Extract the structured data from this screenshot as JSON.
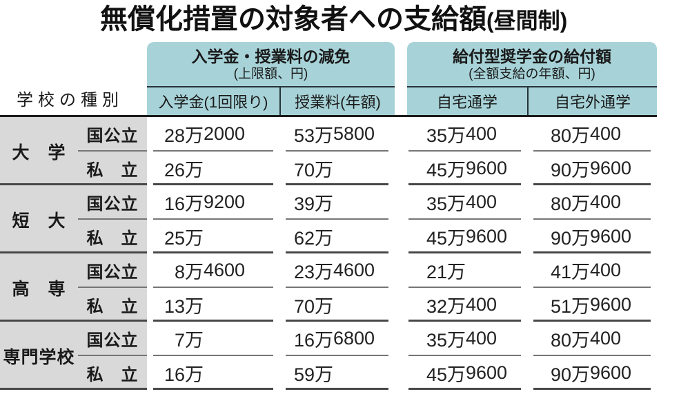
{
  "title": {
    "main": "無償化措置の対象者への支給額",
    "paren": "(昼間制)"
  },
  "colors": {
    "teal": "#a7d3d8",
    "label_gray": "#d9d9d9",
    "header_line": "#263338",
    "strong_line": "#1b1b1b",
    "inner_divider": "#757575",
    "group_divider": "#474747"
  },
  "chart_data": {
    "type": "table",
    "title": "無償化措置の対象者への支給額(昼間制)",
    "school_type_header": "学校の種別",
    "column_groups": [
      {
        "title": "入学金・授業料の減免",
        "subtitle": "(上限額、円)",
        "columns": [
          "入学金(1回限り)",
          "授業料(年額)"
        ]
      },
      {
        "title": "給付型奨学金の給付額",
        "subtitle": "(全額支給の年額、円)",
        "columns": [
          "自宅通学",
          "自宅外通学"
        ]
      }
    ],
    "groups": [
      {
        "label": "大　学",
        "rows": [
          {
            "type": "国公立",
            "values": [
              "28万2000",
              "53万5800",
              "35万400",
              "80万400"
            ]
          },
          {
            "type": "私　立",
            "values": [
              "26万",
              "70万",
              "45万9600",
              "90万9600"
            ]
          }
        ]
      },
      {
        "label": "短　大",
        "rows": [
          {
            "type": "国公立",
            "values": [
              "16万9200",
              "39万",
              "35万400",
              "80万400"
            ]
          },
          {
            "type": "私　立",
            "values": [
              "25万",
              "62万",
              "45万9600",
              "90万9600"
            ]
          }
        ]
      },
      {
        "label": "高　専",
        "rows": [
          {
            "type": "国公立",
            "values": [
              "8万4600",
              "23万4600",
              "21万",
              "41万400"
            ]
          },
          {
            "type": "私　立",
            "values": [
              "13万",
              "70万",
              "32万400",
              "51万9600"
            ]
          }
        ]
      },
      {
        "label": "専門学校",
        "rows": [
          {
            "type": "国公立",
            "values": [
              "7万",
              "16万6800",
              "35万400",
              "80万400"
            ]
          },
          {
            "type": "私　立",
            "values": [
              "16万",
              "59万",
              "45万9600",
              "90万9600"
            ]
          }
        ]
      }
    ]
  }
}
